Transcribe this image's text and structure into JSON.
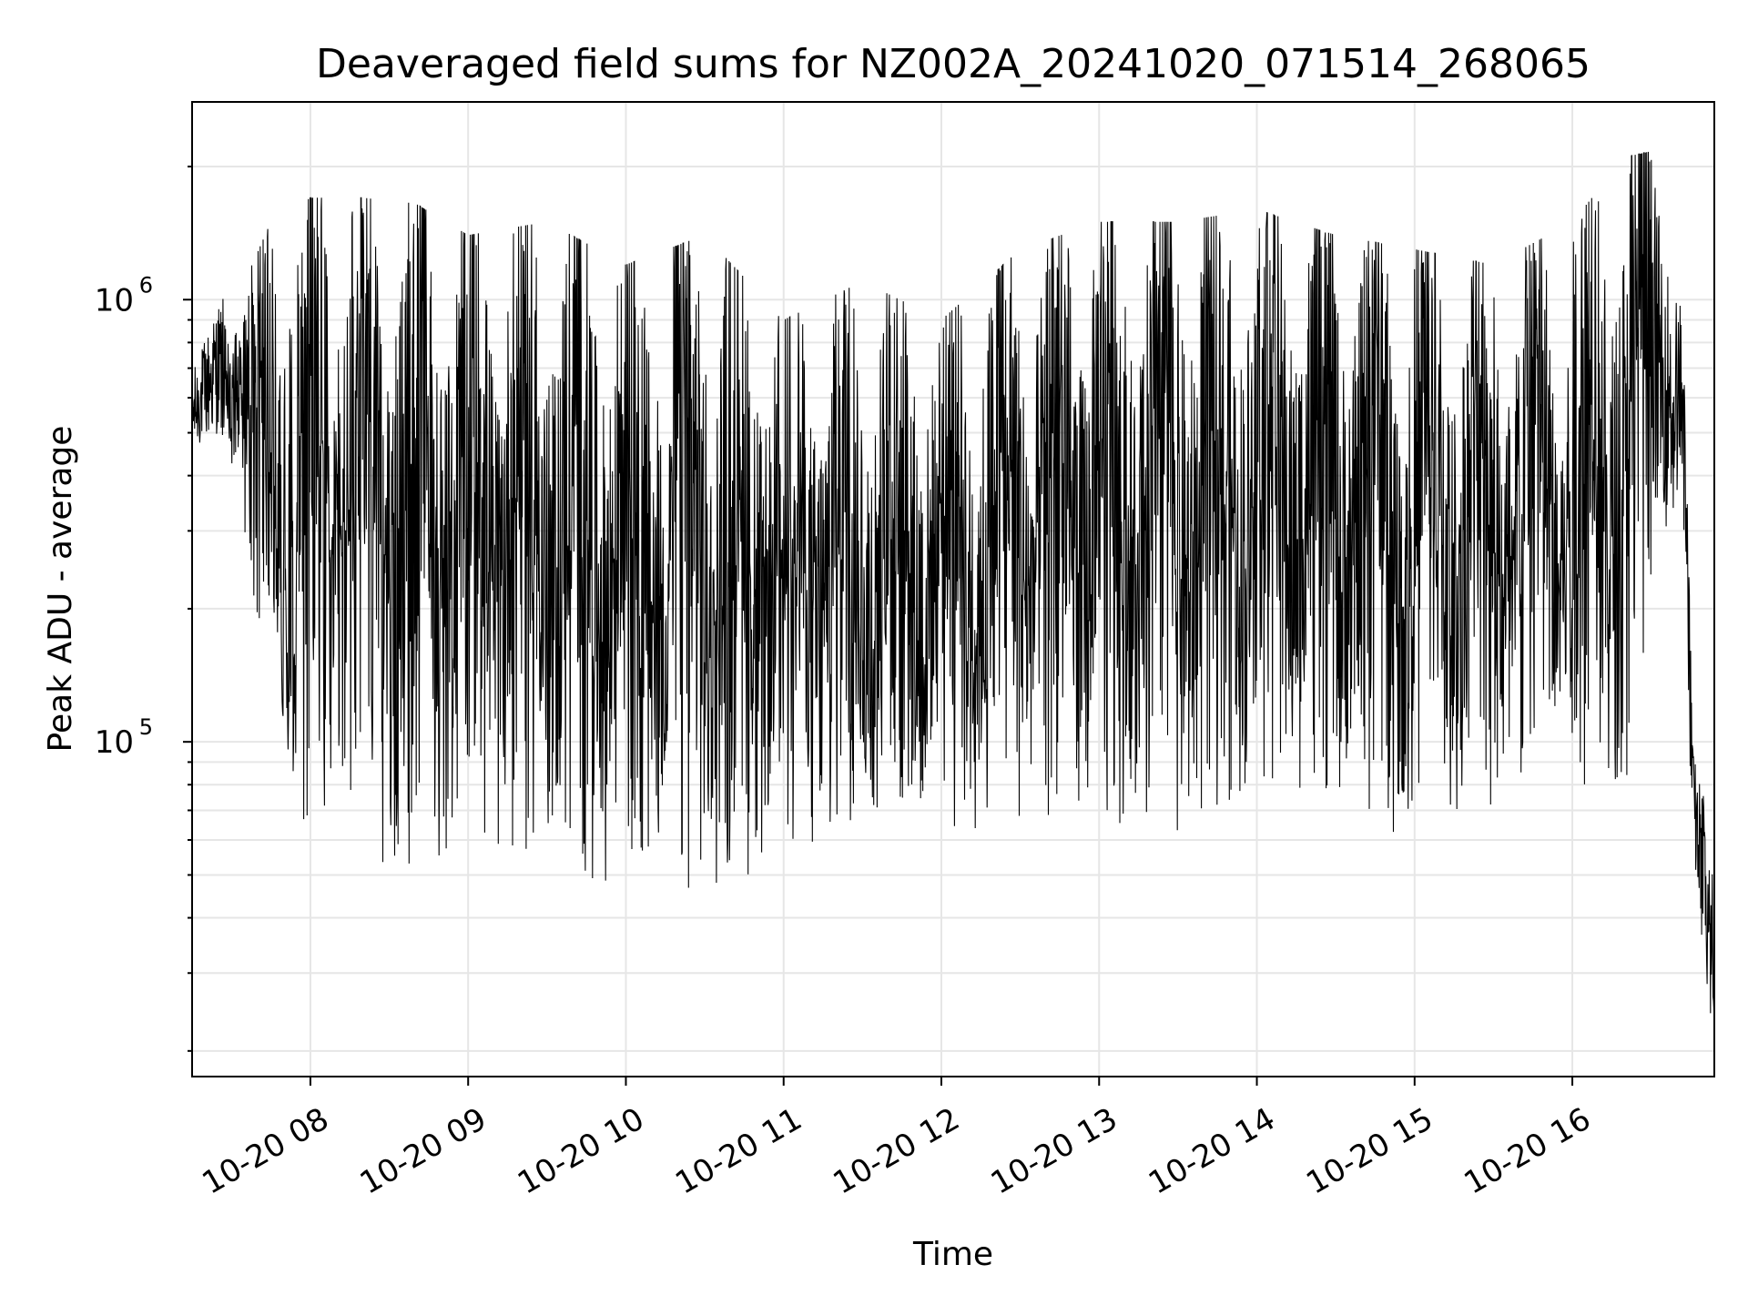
{
  "chart_data": {
    "type": "line",
    "title": "Deaveraged field sums for NZ002A_20241020_071514_268065",
    "xlabel": "Time",
    "ylabel": "Peak ADU - average",
    "xscale": "date",
    "yscale": "log",
    "xlim": [
      "2024-10-20 07:15",
      "2024-10-20 16:54"
    ],
    "ylim": [
      17500,
      2800000
    ],
    "grid": true,
    "line_color": "#000000",
    "grid_color": "#e6e6e6",
    "x_ticks": [
      {
        "label": "10-20 08",
        "value": "2024-10-20 08:00"
      },
      {
        "label": "10-20 09",
        "value": "2024-10-20 09:00"
      },
      {
        "label": "10-20 10",
        "value": "2024-10-20 10:00"
      },
      {
        "label": "10-20 11",
        "value": "2024-10-20 11:00"
      },
      {
        "label": "10-20 12",
        "value": "2024-10-20 12:00"
      },
      {
        "label": "10-20 13",
        "value": "2024-10-20 13:00"
      },
      {
        "label": "10-20 14",
        "value": "2024-10-20 14:00"
      },
      {
        "label": "10-20 15",
        "value": "2024-10-20 15:00"
      },
      {
        "label": "10-20 16",
        "value": "2024-10-20 16:00"
      }
    ],
    "y_ticks": [
      {
        "base": "10",
        "exp": "5",
        "value": 100000
      },
      {
        "base": "10",
        "exp": "6",
        "value": 1000000
      }
    ],
    "series": [
      {
        "description": "dense noisy time series; envelope of values per time",
        "envelope": [
          {
            "x": "2024-10-20 07:15",
            "low": 450000,
            "high": 680000
          },
          {
            "x": "2024-10-20 07:25",
            "low": 500000,
            "high": 1000000
          },
          {
            "x": "2024-10-20 07:35",
            "low": 300000,
            "high": 1100000
          },
          {
            "x": "2024-10-20 07:45",
            "low": 110000,
            "high": 1500000
          },
          {
            "x": "2024-10-20 08:00",
            "low": 60000,
            "high": 1700000
          },
          {
            "x": "2024-10-20 08:20",
            "low": 55000,
            "high": 1700000
          },
          {
            "x": "2024-10-20 08:40",
            "low": 50000,
            "high": 1650000
          },
          {
            "x": "2024-10-20 09:00",
            "low": 60000,
            "high": 1400000
          },
          {
            "x": "2024-10-20 09:30",
            "low": 50000,
            "high": 1500000
          },
          {
            "x": "2024-10-20 10:00",
            "low": 48000,
            "high": 1200000
          },
          {
            "x": "2024-10-20 10:30",
            "low": 46000,
            "high": 1400000
          },
          {
            "x": "2024-10-20 11:00",
            "low": 52000,
            "high": 900000
          },
          {
            "x": "2024-10-20 11:30",
            "low": 58000,
            "high": 1100000
          },
          {
            "x": "2024-10-20 12:00",
            "low": 60000,
            "high": 900000
          },
          {
            "x": "2024-10-20 12:30",
            "low": 65000,
            "high": 1300000
          },
          {
            "x": "2024-10-20 13:00",
            "low": 65000,
            "high": 1500000
          },
          {
            "x": "2024-10-20 13:30",
            "low": 62000,
            "high": 1500000
          },
          {
            "x": "2024-10-20 14:00",
            "low": 80000,
            "high": 1600000
          },
          {
            "x": "2024-10-20 14:30",
            "low": 75000,
            "high": 1400000
          },
          {
            "x": "2024-10-20 15:00",
            "low": 55000,
            "high": 1300000
          },
          {
            "x": "2024-10-20 15:30",
            "low": 70000,
            "high": 1200000
          },
          {
            "x": "2024-10-20 16:00",
            "low": 80000,
            "high": 1500000
          },
          {
            "x": "2024-10-20 16:20",
            "low": 75000,
            "high": 2100000
          },
          {
            "x": "2024-10-20 16:35",
            "low": 300000,
            "high": 2200000
          },
          {
            "x": "2024-10-20 16:42",
            "low": 250000,
            "high": 900000
          },
          {
            "x": "2024-10-20 16:46",
            "low": 55000,
            "high": 95000
          },
          {
            "x": "2024-10-20 16:54",
            "low": 19000,
            "high": 60000
          }
        ]
      }
    ]
  }
}
